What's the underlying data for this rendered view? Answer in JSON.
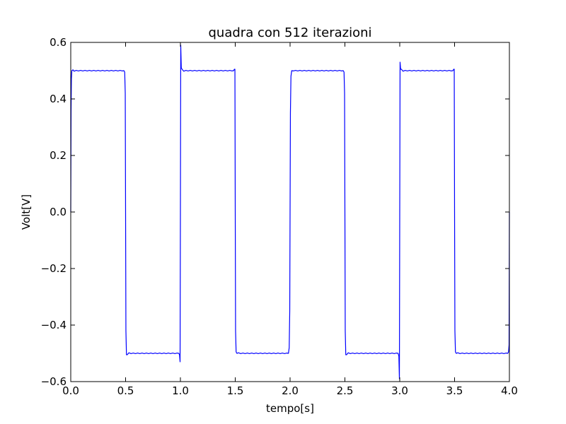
{
  "chart_data": {
    "type": "line",
    "title": "quadra con 512 iterazioni",
    "xlabel": "tempo[s]",
    "ylabel": "Volt[V]",
    "xlim": [
      0.0,
      4.0
    ],
    "ylim": [
      -0.6,
      0.6
    ],
    "x_ticks": [
      0.0,
      0.5,
      1.0,
      1.5,
      2.0,
      2.5,
      3.0,
      3.5,
      4.0
    ],
    "x_tick_labels": [
      "0.0",
      "0.5",
      "1.0",
      "1.5",
      "2.0",
      "2.5",
      "3.0",
      "3.5",
      "4.0"
    ],
    "y_ticks": [
      0.6,
      0.4,
      0.2,
      0.0,
      -0.2,
      -0.4,
      -0.6
    ],
    "y_tick_labels": [
      "0.6",
      "0.4",
      "0.2",
      "0.0",
      "−0.2",
      "−0.4",
      "−0.6"
    ],
    "grid": false,
    "legend": "none",
    "series": [
      {
        "color": "#0000ff",
        "x": [
          0.0,
          0.003,
          0.006,
          0.01,
          0.02,
          0.03,
          0.05,
          0.07,
          0.09,
          0.11,
          0.13,
          0.15,
          0.17,
          0.19,
          0.21,
          0.23,
          0.25,
          0.27,
          0.29,
          0.31,
          0.33,
          0.35,
          0.37,
          0.39,
          0.41,
          0.43,
          0.45,
          0.47,
          0.485,
          0.492,
          0.497,
          0.5,
          0.503,
          0.508,
          0.515,
          0.53,
          0.55,
          0.57,
          0.59,
          0.61,
          0.63,
          0.65,
          0.67,
          0.69,
          0.71,
          0.73,
          0.75,
          0.77,
          0.79,
          0.81,
          0.83,
          0.85,
          0.87,
          0.89,
          0.91,
          0.93,
          0.95,
          0.97,
          0.985,
          0.992,
          0.997,
          1.0,
          1.003,
          1.008,
          1.015,
          1.03,
          1.05,
          1.07,
          1.09,
          1.11,
          1.13,
          1.15,
          1.17,
          1.19,
          1.21,
          1.23,
          1.25,
          1.27,
          1.29,
          1.31,
          1.33,
          1.35,
          1.37,
          1.39,
          1.41,
          1.43,
          1.45,
          1.47,
          1.485,
          1.492,
          1.497,
          1.5,
          1.503,
          1.508,
          1.515,
          1.53,
          1.55,
          1.57,
          1.59,
          1.61,
          1.63,
          1.65,
          1.67,
          1.69,
          1.71,
          1.73,
          1.75,
          1.77,
          1.79,
          1.81,
          1.83,
          1.85,
          1.87,
          1.89,
          1.91,
          1.93,
          1.95,
          1.97,
          1.985,
          1.992,
          1.997,
          2.0,
          2.003,
          2.008,
          2.015,
          2.03,
          2.05,
          2.07,
          2.09,
          2.11,
          2.13,
          2.15,
          2.17,
          2.19,
          2.21,
          2.23,
          2.25,
          2.27,
          2.29,
          2.31,
          2.33,
          2.35,
          2.37,
          2.39,
          2.41,
          2.43,
          2.45,
          2.47,
          2.485,
          2.492,
          2.497,
          2.5,
          2.503,
          2.508,
          2.515,
          2.53,
          2.55,
          2.57,
          2.59,
          2.61,
          2.63,
          2.65,
          2.67,
          2.69,
          2.71,
          2.73,
          2.75,
          2.77,
          2.79,
          2.81,
          2.83,
          2.85,
          2.87,
          2.89,
          2.91,
          2.93,
          2.95,
          2.97,
          2.985,
          2.992,
          2.997,
          3.0,
          3.003,
          3.008,
          3.015,
          3.03,
          3.05,
          3.07,
          3.09,
          3.11,
          3.13,
          3.15,
          3.17,
          3.19,
          3.21,
          3.23,
          3.25,
          3.27,
          3.29,
          3.31,
          3.33,
          3.35,
          3.37,
          3.39,
          3.41,
          3.43,
          3.45,
          3.47,
          3.485,
          3.492,
          3.497,
          3.5,
          3.503,
          3.508,
          3.515,
          3.53,
          3.55,
          3.57,
          3.59,
          3.61,
          3.63,
          3.65,
          3.67,
          3.69,
          3.71,
          3.73,
          3.75,
          3.77,
          3.79,
          3.81,
          3.83,
          3.85,
          3.87,
          3.89,
          3.91,
          3.93,
          3.95,
          3.97,
          3.985,
          3.992,
          3.997,
          4.0
        ],
        "y": [
          0.0,
          0.36,
          0.47,
          0.5,
          0.503,
          0.498,
          0.501,
          0.499,
          0.501,
          0.499,
          0.501,
          0.499,
          0.501,
          0.499,
          0.501,
          0.499,
          0.501,
          0.499,
          0.501,
          0.499,
          0.501,
          0.499,
          0.501,
          0.499,
          0.501,
          0.499,
          0.501,
          0.499,
          0.5,
          0.495,
          0.42,
          0.0,
          -0.42,
          -0.505,
          -0.505,
          -0.498,
          -0.501,
          -0.499,
          -0.501,
          -0.499,
          -0.501,
          -0.499,
          -0.501,
          -0.499,
          -0.501,
          -0.499,
          -0.501,
          -0.499,
          -0.501,
          -0.499,
          -0.501,
          -0.499,
          -0.501,
          -0.499,
          -0.501,
          -0.499,
          -0.501,
          -0.499,
          -0.5,
          -0.505,
          -0.53,
          0.0,
          0.59,
          0.51,
          0.505,
          0.498,
          0.501,
          0.499,
          0.501,
          0.499,
          0.501,
          0.499,
          0.501,
          0.499,
          0.501,
          0.499,
          0.501,
          0.499,
          0.501,
          0.499,
          0.501,
          0.499,
          0.501,
          0.499,
          0.501,
          0.499,
          0.501,
          0.499,
          0.5,
          0.505,
          0.505,
          0.0,
          -0.42,
          -0.495,
          -0.5,
          -0.498,
          -0.501,
          -0.499,
          -0.501,
          -0.499,
          -0.501,
          -0.499,
          -0.501,
          -0.499,
          -0.501,
          -0.499,
          -0.501,
          -0.499,
          -0.501,
          -0.499,
          -0.501,
          -0.499,
          -0.501,
          -0.499,
          -0.501,
          -0.499,
          -0.501,
          -0.499,
          -0.5,
          -0.48,
          -0.35,
          0.0,
          0.35,
          0.48,
          0.5,
          0.499,
          0.501,
          0.499,
          0.501,
          0.499,
          0.501,
          0.499,
          0.501,
          0.499,
          0.501,
          0.499,
          0.501,
          0.499,
          0.501,
          0.499,
          0.501,
          0.499,
          0.501,
          0.499,
          0.501,
          0.499,
          0.501,
          0.499,
          0.5,
          0.495,
          0.42,
          0.0,
          -0.42,
          -0.505,
          -0.505,
          -0.498,
          -0.501,
          -0.499,
          -0.501,
          -0.499,
          -0.501,
          -0.499,
          -0.501,
          -0.499,
          -0.501,
          -0.499,
          -0.501,
          -0.499,
          -0.501,
          -0.499,
          -0.501,
          -0.499,
          -0.501,
          -0.499,
          -0.501,
          -0.499,
          -0.501,
          -0.499,
          -0.5,
          -0.51,
          -0.59,
          0.0,
          0.53,
          0.505,
          0.505,
          0.498,
          0.501,
          0.499,
          0.501,
          0.499,
          0.501,
          0.499,
          0.501,
          0.499,
          0.501,
          0.499,
          0.501,
          0.499,
          0.501,
          0.499,
          0.501,
          0.499,
          0.501,
          0.499,
          0.501,
          0.499,
          0.501,
          0.499,
          0.5,
          0.505,
          0.505,
          0.0,
          -0.42,
          -0.495,
          -0.5,
          -0.498,
          -0.501,
          -0.499,
          -0.501,
          -0.499,
          -0.501,
          -0.499,
          -0.501,
          -0.499,
          -0.501,
          -0.499,
          -0.501,
          -0.499,
          -0.501,
          -0.499,
          -0.501,
          -0.499,
          -0.501,
          -0.499,
          -0.501,
          -0.499,
          -0.501,
          -0.499,
          -0.5,
          -0.495,
          -0.47,
          0.0
        ]
      }
    ]
  }
}
